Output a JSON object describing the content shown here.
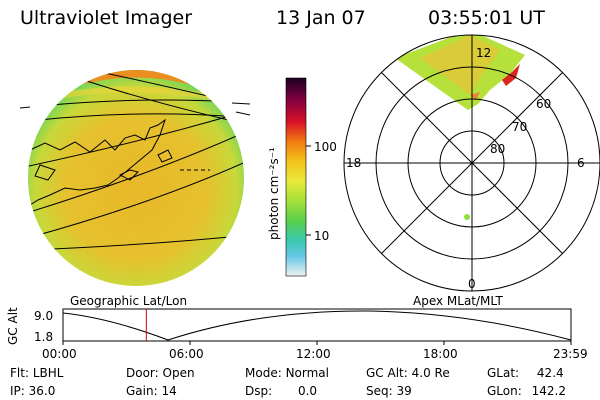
{
  "header": {
    "instrument": "Ultraviolet Imager",
    "date": "13 Jan 07",
    "time": "03:55:01 UT"
  },
  "colorbar": {
    "label": "photon cm⁻²s⁻¹",
    "ticks": [
      "100",
      "10"
    ]
  },
  "polar_plot": {
    "mlt_labels": [
      "12",
      "18",
      "6",
      "0"
    ],
    "mlat_labels": [
      "60",
      "70",
      "80"
    ]
  },
  "panel_labels": {
    "left": "Geographic Lat/Lon",
    "right": "Apex MLat/MLT"
  },
  "altitude_axis": {
    "label": "GC Alt",
    "ticks": [
      "9.0",
      "1.8"
    ]
  },
  "time_axis": {
    "ticks": [
      "00:00",
      "06:00",
      "12:00",
      "18:00",
      "23:59"
    ],
    "current_time_fraction": 0.164
  },
  "status": {
    "row1": [
      {
        "key": "Flt:",
        "value": "LBHL"
      },
      {
        "key": "Door:",
        "value": "Open"
      },
      {
        "key": "Mode:",
        "value": "Normal"
      },
      {
        "key": "GC Alt:",
        "value": "4.0 Re"
      },
      {
        "key": "GLat:",
        "value": "42.4"
      }
    ],
    "row2": [
      {
        "key": "IP:",
        "value": "36.0"
      },
      {
        "key": "Gain:",
        "value": "14"
      },
      {
        "key": "Dsp:",
        "value": "0.0"
      },
      {
        "key": "Seq:",
        "value": "39"
      },
      {
        "key": "GLon:",
        "value": "142.2"
      }
    ]
  },
  "colors": {
    "disk_main": "#e7c42a",
    "disk_edge": "#7bd84d",
    "aurora_red": "#d8281c",
    "marker_red": "#cc0000"
  }
}
